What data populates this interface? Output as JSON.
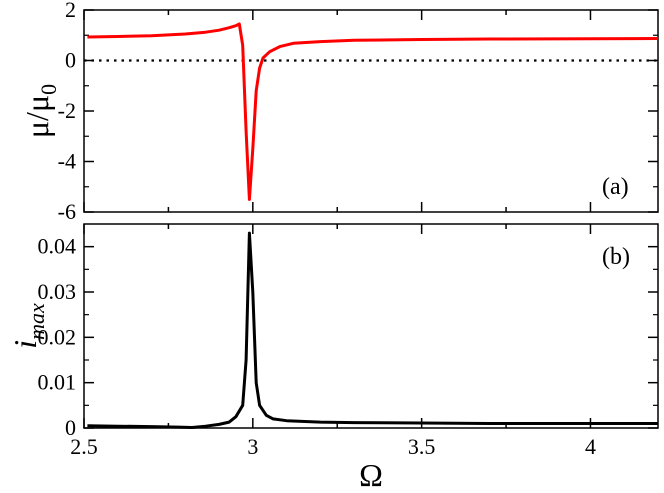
{
  "chart_data": [
    {
      "type": "line",
      "panel_label": "(a)",
      "ylabel": {
        "base": "μ/μ",
        "sub": "0"
      },
      "xlim": [
        2.5,
        4.2
      ],
      "ylim": [
        -6,
        2
      ],
      "yticks": [
        -6,
        -4,
        -2,
        0,
        2
      ],
      "reference_line": {
        "y": 0,
        "style": "dotted",
        "color": "#000000"
      },
      "series": [
        {
          "color": "#ff0000",
          "x": [
            2.51,
            2.6,
            2.7,
            2.8,
            2.86,
            2.9,
            2.93,
            2.95,
            2.96,
            2.97,
            2.98,
            2.99,
            3.0,
            3.01,
            3.02,
            3.03,
            3.05,
            3.08,
            3.12,
            3.2,
            3.3,
            3.5,
            3.7,
            4.0,
            4.2
          ],
          "y": [
            0.93,
            0.95,
            0.98,
            1.05,
            1.12,
            1.2,
            1.3,
            1.38,
            1.45,
            0.6,
            -2.8,
            -5.5,
            -3.5,
            -1.2,
            -0.3,
            0.1,
            0.35,
            0.55,
            0.68,
            0.75,
            0.8,
            0.83,
            0.85,
            0.86,
            0.87
          ]
        }
      ]
    },
    {
      "type": "line",
      "panel_label": "(b)",
      "ylabel": {
        "base": "i",
        "sub": "max"
      },
      "xlabel": "Ω",
      "xlim": [
        2.5,
        4.2
      ],
      "ylim": [
        0,
        0.045
      ],
      "yticks": [
        0,
        0.01,
        0.02,
        0.03,
        0.04
      ],
      "xticks": [
        2.5,
        3,
        3.5,
        4
      ],
      "series": [
        {
          "color": "#000000",
          "x": [
            2.51,
            2.6,
            2.7,
            2.78,
            2.82,
            2.86,
            2.9,
            2.93,
            2.95,
            2.97,
            2.98,
            2.99,
            3.0,
            3.01,
            3.02,
            3.04,
            3.06,
            3.1,
            3.2,
            3.3,
            3.5,
            3.7,
            4.0,
            4.2
          ],
          "y": [
            0.0005,
            0.0004,
            0.0003,
            0.0002,
            0.0001,
            0.0004,
            0.0008,
            0.0013,
            0.0025,
            0.005,
            0.015,
            0.043,
            0.03,
            0.01,
            0.005,
            0.0028,
            0.002,
            0.0016,
            0.0013,
            0.0012,
            0.0011,
            0.001,
            0.001,
            0.001
          ]
        }
      ]
    }
  ]
}
